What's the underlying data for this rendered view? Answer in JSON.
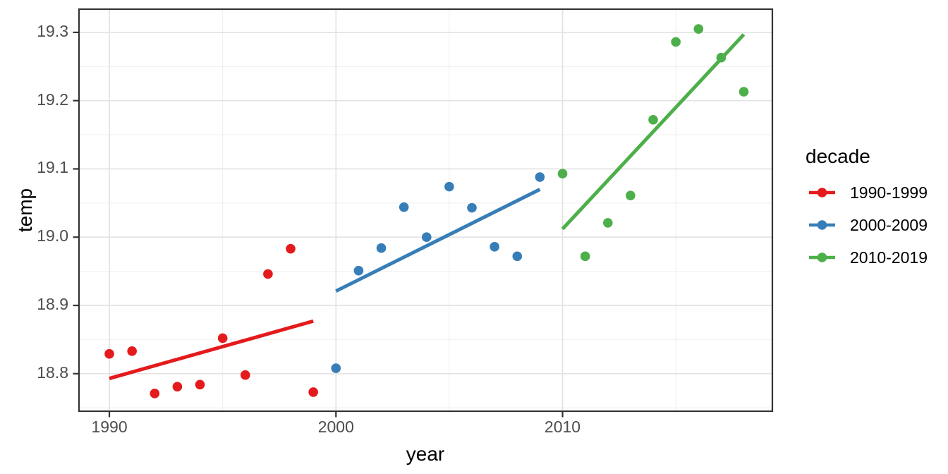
{
  "chart_data": {
    "type": "scatter",
    "title": "",
    "xlabel": "year",
    "ylabel": "temp",
    "xlim": [
      1988.66,
      2019.26
    ],
    "ylim": [
      18.745,
      19.334
    ],
    "grid": "major and minor, light gray on white panel, black panel border",
    "x_ticks": [
      {
        "label": "1990",
        "value": 1990
      },
      {
        "label": "2000",
        "value": 2000
      },
      {
        "label": "2010",
        "value": 2010
      }
    ],
    "x_minor_ticks": [
      1995,
      2005,
      2015
    ],
    "y_ticks": [
      {
        "label": "18.8",
        "value": 18.8
      },
      {
        "label": "18.9",
        "value": 18.9
      },
      {
        "label": "19.0",
        "value": 19.0
      },
      {
        "label": "19.1",
        "value": 19.1
      },
      {
        "label": "19.2",
        "value": 19.2
      },
      {
        "label": "19.3",
        "value": 19.3
      }
    ],
    "y_minor_ticks": [
      18.75,
      18.85,
      18.95,
      19.05,
      19.15,
      19.25
    ],
    "legend": {
      "title": "decade",
      "position": "right",
      "key": "line-with-point"
    },
    "series": [
      {
        "name": "1990-1999",
        "color": "#E41A1C",
        "points": [
          [
            1990,
            18.829
          ],
          [
            1991,
            18.833
          ],
          [
            1992,
            18.771
          ],
          [
            1993,
            18.781
          ],
          [
            1994,
            18.784
          ],
          [
            1995,
            18.852
          ],
          [
            1996,
            18.798
          ],
          [
            1997,
            18.946
          ],
          [
            1998,
            18.983
          ],
          [
            1999,
            18.773
          ]
        ],
        "trend": [
          [
            1990,
            18.793
          ],
          [
            1999,
            18.877
          ]
        ]
      },
      {
        "name": "2000-2009",
        "color": "#377EB8",
        "points": [
          [
            2000,
            18.808
          ],
          [
            2001,
            18.951
          ],
          [
            2002,
            18.984
          ],
          [
            2003,
            19.044
          ],
          [
            2004,
            19.0
          ],
          [
            2005,
            19.074
          ],
          [
            2006,
            19.043
          ],
          [
            2007,
            18.986
          ],
          [
            2008,
            18.972
          ],
          [
            2009,
            19.088
          ]
        ],
        "trend": [
          [
            2000,
            18.921
          ],
          [
            2009,
            19.07
          ]
        ]
      },
      {
        "name": "2010-2019",
        "color": "#4DAF4A",
        "points": [
          [
            2010,
            19.093
          ],
          [
            2011,
            18.972
          ],
          [
            2012,
            19.021
          ],
          [
            2013,
            19.061
          ],
          [
            2014,
            19.172
          ],
          [
            2015,
            19.286
          ],
          [
            2016,
            19.305
          ],
          [
            2017,
            19.263
          ],
          [
            2018,
            19.213
          ]
        ],
        "trend": [
          [
            2010,
            19.012
          ],
          [
            2018,
            19.297
          ]
        ]
      }
    ],
    "style_colors": {
      "panel_background": "#FFFFFF",
      "major_grid": "#E3E3E3",
      "minor_grid": "#F0F0F0",
      "panel_border": "#333333",
      "tick_mark": "#333333",
      "tick_label": "#4D4D4D",
      "axis_title": "#000000"
    }
  }
}
